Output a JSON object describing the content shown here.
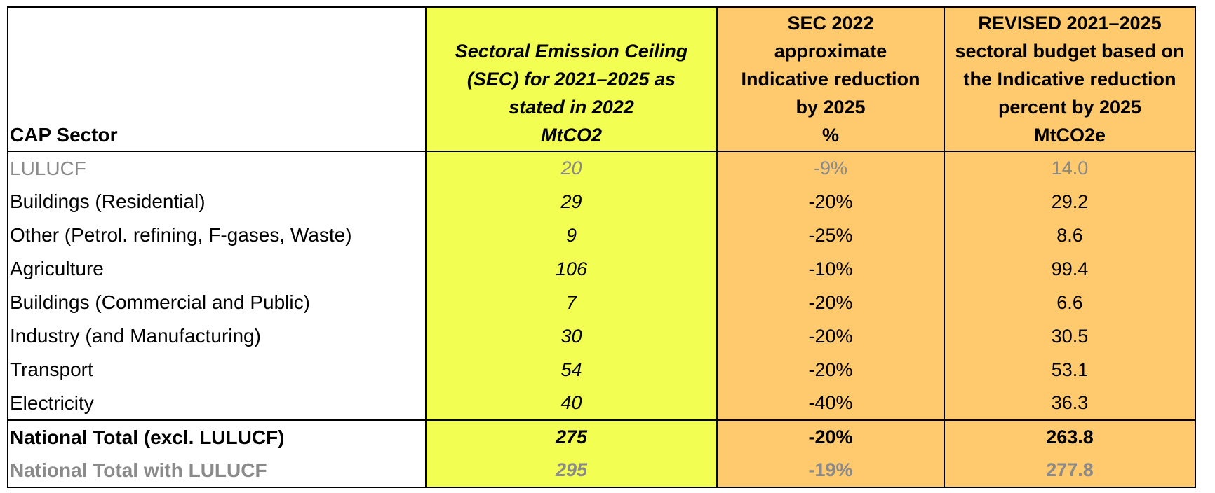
{
  "table": {
    "headers": {
      "sector": "CAP Sector",
      "sec": [
        "Sectoral Emission Ceiling",
        "(SEC) for 2021–2025 as",
        "stated in 2022",
        "MtCO2"
      ],
      "reduction": [
        "SEC 2022",
        "approximate",
        "Indicative reduction",
        "by 2025",
        "%"
      ],
      "revised": [
        "REVISED 2021–2025",
        "sectoral budget based on",
        "the Indicative reduction",
        "percent by 2025",
        "MtCO2e"
      ]
    },
    "rows": [
      {
        "sector": "LULUCF",
        "sec": "20",
        "reduction": "-9%",
        "revised": "14.0"
      },
      {
        "sector": "Buildings (Residential)",
        "sec": "29",
        "reduction": "-20%",
        "revised": "29.2"
      },
      {
        "sector": "Other (Petrol. refining, F-gases, Waste)",
        "sec": "9",
        "reduction": "-25%",
        "revised": "8.6"
      },
      {
        "sector": "Agriculture",
        "sec": "106",
        "reduction": "-10%",
        "revised": "99.4"
      },
      {
        "sector": "Buildings (Commercial and Public)",
        "sec": "7",
        "reduction": "-20%",
        "revised": "6.6"
      },
      {
        "sector": "Industry (and Manufacturing)",
        "sec": "30",
        "reduction": "-20%",
        "revised": "30.5"
      },
      {
        "sector": "Transport",
        "sec": "54",
        "reduction": "-20%",
        "revised": "53.1"
      },
      {
        "sector": "Electricity",
        "sec": "40",
        "reduction": "-40%",
        "revised": "36.3"
      }
    ],
    "totals": [
      {
        "sector": "National Total (excl. LULUCF)",
        "sec": "275",
        "reduction": "-20%",
        "revised": "263.8"
      },
      {
        "sector": "National Total with LULUCF",
        "sec": "295",
        "reduction": "-19%",
        "revised": "277.8"
      }
    ],
    "colors": {
      "sec_column": "#f2ff52",
      "reduction_columns": "#ffc96e",
      "muted_text": "#8a8a8a"
    }
  }
}
